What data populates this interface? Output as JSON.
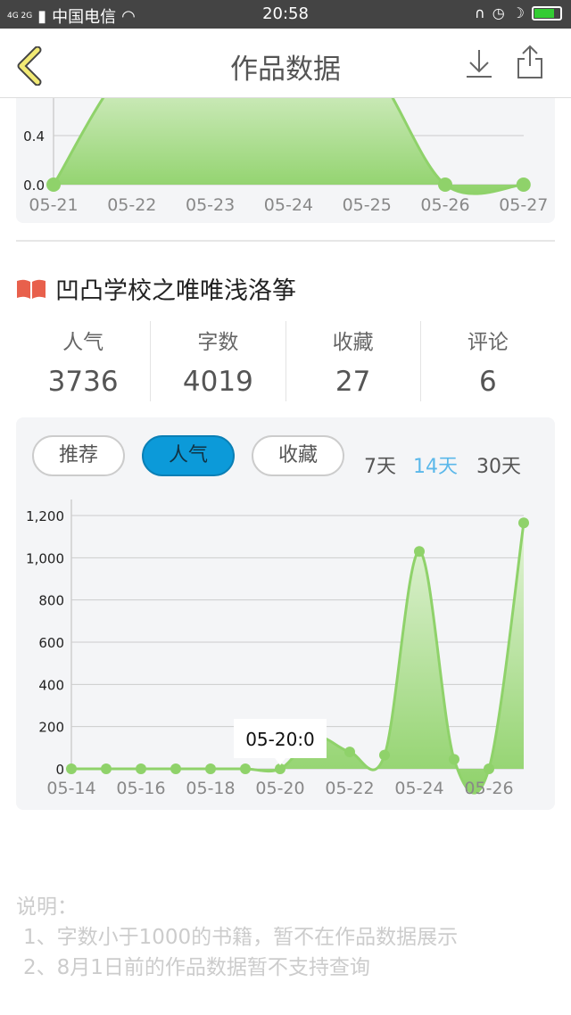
{
  "status_bar": {
    "network": "4G 2G",
    "carrier": "中国电信",
    "time": "20:58"
  },
  "header": {
    "title": "作品数据",
    "icons": [
      "chevron-left-icon",
      "download-icon",
      "share-icon"
    ]
  },
  "top_chart": {
    "type": "area",
    "x": [
      "05-21",
      "05-22",
      "05-23",
      "05-24",
      "05-25",
      "05-26",
      "05-27"
    ],
    "y_ticks": [
      "0.0",
      "0.4"
    ],
    "values": [
      0,
      1,
      1,
      1,
      1,
      0,
      0
    ],
    "color": "#8fd26a"
  },
  "book": {
    "title": "凹凸学校之唯唯浅洛筝",
    "icon": "book-icon",
    "icon_color": "#e8604c"
  },
  "stats": [
    {
      "label": "人气",
      "value": "3736"
    },
    {
      "label": "字数",
      "value": "4019"
    },
    {
      "label": "收藏",
      "value": "27"
    },
    {
      "label": "评论",
      "value": "6"
    }
  ],
  "filters": {
    "metrics": [
      "推荐",
      "人气",
      "收藏"
    ],
    "active_metric": "人气",
    "ranges": [
      "7天",
      "14天",
      "30天"
    ],
    "active_range": "14天",
    "accent": "#0c9ad9"
  },
  "chart_data": {
    "type": "area",
    "x": [
      "05-14",
      "05-15",
      "05-16",
      "05-17",
      "05-18",
      "05-19",
      "05-20",
      "05-21",
      "05-22",
      "05-23",
      "05-24",
      "05-25",
      "05-26",
      "05-27"
    ],
    "x_tick_labels": [
      "05-14",
      "05-16",
      "05-18",
      "05-20",
      "05-22",
      "05-24",
      "05-26"
    ],
    "y_tick_labels": [
      "0",
      "200",
      "400",
      "600",
      "800",
      "1,000",
      "1,200"
    ],
    "ylim": [
      0,
      1200
    ],
    "values": [
      0,
      0,
      0,
      0,
      0,
      0,
      0,
      150,
      80,
      65,
      1030,
      45,
      0,
      1165
    ],
    "tooltip": "05-20:0",
    "grid": true,
    "color": "#8fd26a"
  },
  "notes": {
    "title": "说明：",
    "lines": [
      "1、字数小于1000的书籍，暂不在作品数据展示",
      "2、8月1日前的作品数据暂不支持查询"
    ]
  }
}
